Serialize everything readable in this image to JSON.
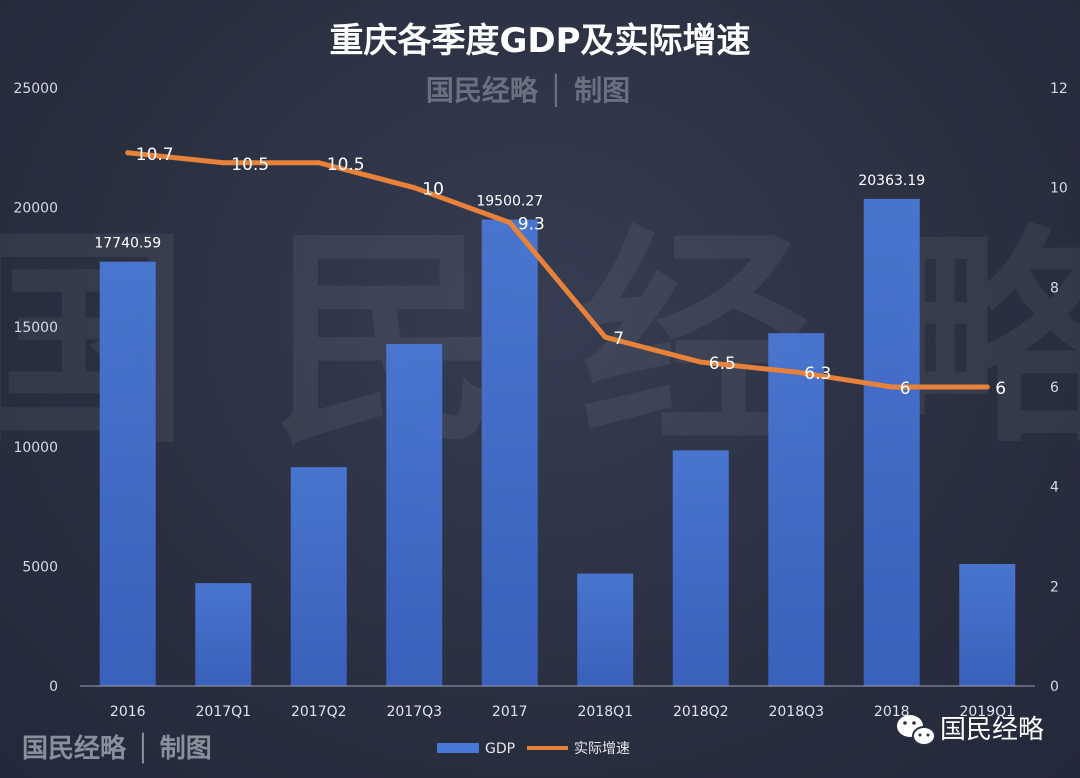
{
  "title": "重庆各季度GDP及实际增速",
  "watermark": {
    "top": "国民经略 │ 制图",
    "big": "国 民 经 略",
    "bottom": "国民经略 │ 制图"
  },
  "brand": {
    "name": "国民经略",
    "icon": "wechat-icon"
  },
  "colors": {
    "bar": "#4a78d6",
    "line": "#e8823a",
    "background": "#2b3142"
  },
  "chart_data": {
    "type": "bar",
    "title": "重庆各季度GDP及实际增速",
    "categories": [
      "2016",
      "2017Q1",
      "2017Q2",
      "2017Q3",
      "2017",
      "2018Q1",
      "2018Q2",
      "2018Q3",
      "2018",
      "2019Q1"
    ],
    "series": [
      {
        "name": "GDP",
        "type": "bar",
        "axis": "left",
        "values": [
          17740.59,
          4300,
          9150,
          14300,
          19500.27,
          4700,
          9850,
          14750,
          20363.19,
          5100
        ],
        "labels": [
          "17740.59",
          "",
          "",
          "",
          "19500.27",
          "",
          "",
          "",
          "20363.19",
          ""
        ]
      },
      {
        "name": "实际增速",
        "type": "line",
        "axis": "right",
        "values": [
          10.7,
          10.5,
          10.5,
          10,
          9.3,
          7,
          6.5,
          6.3,
          6,
          6
        ],
        "labels": [
          "10.7",
          "10.5",
          "10.5",
          "10",
          "9.3",
          "7",
          "6.5",
          "6.3",
          "6",
          "6"
        ]
      }
    ],
    "yleft": {
      "ticks": [
        "0",
        "5000",
        "10000",
        "15000",
        "20000",
        "25000"
      ],
      "ylim": [
        0,
        25000
      ]
    },
    "yright": {
      "ticks": [
        "0",
        "2",
        "4",
        "6",
        "8",
        "10",
        "12"
      ],
      "ylim": [
        0,
        12
      ]
    },
    "legend": "bottom-center",
    "grid": false
  }
}
